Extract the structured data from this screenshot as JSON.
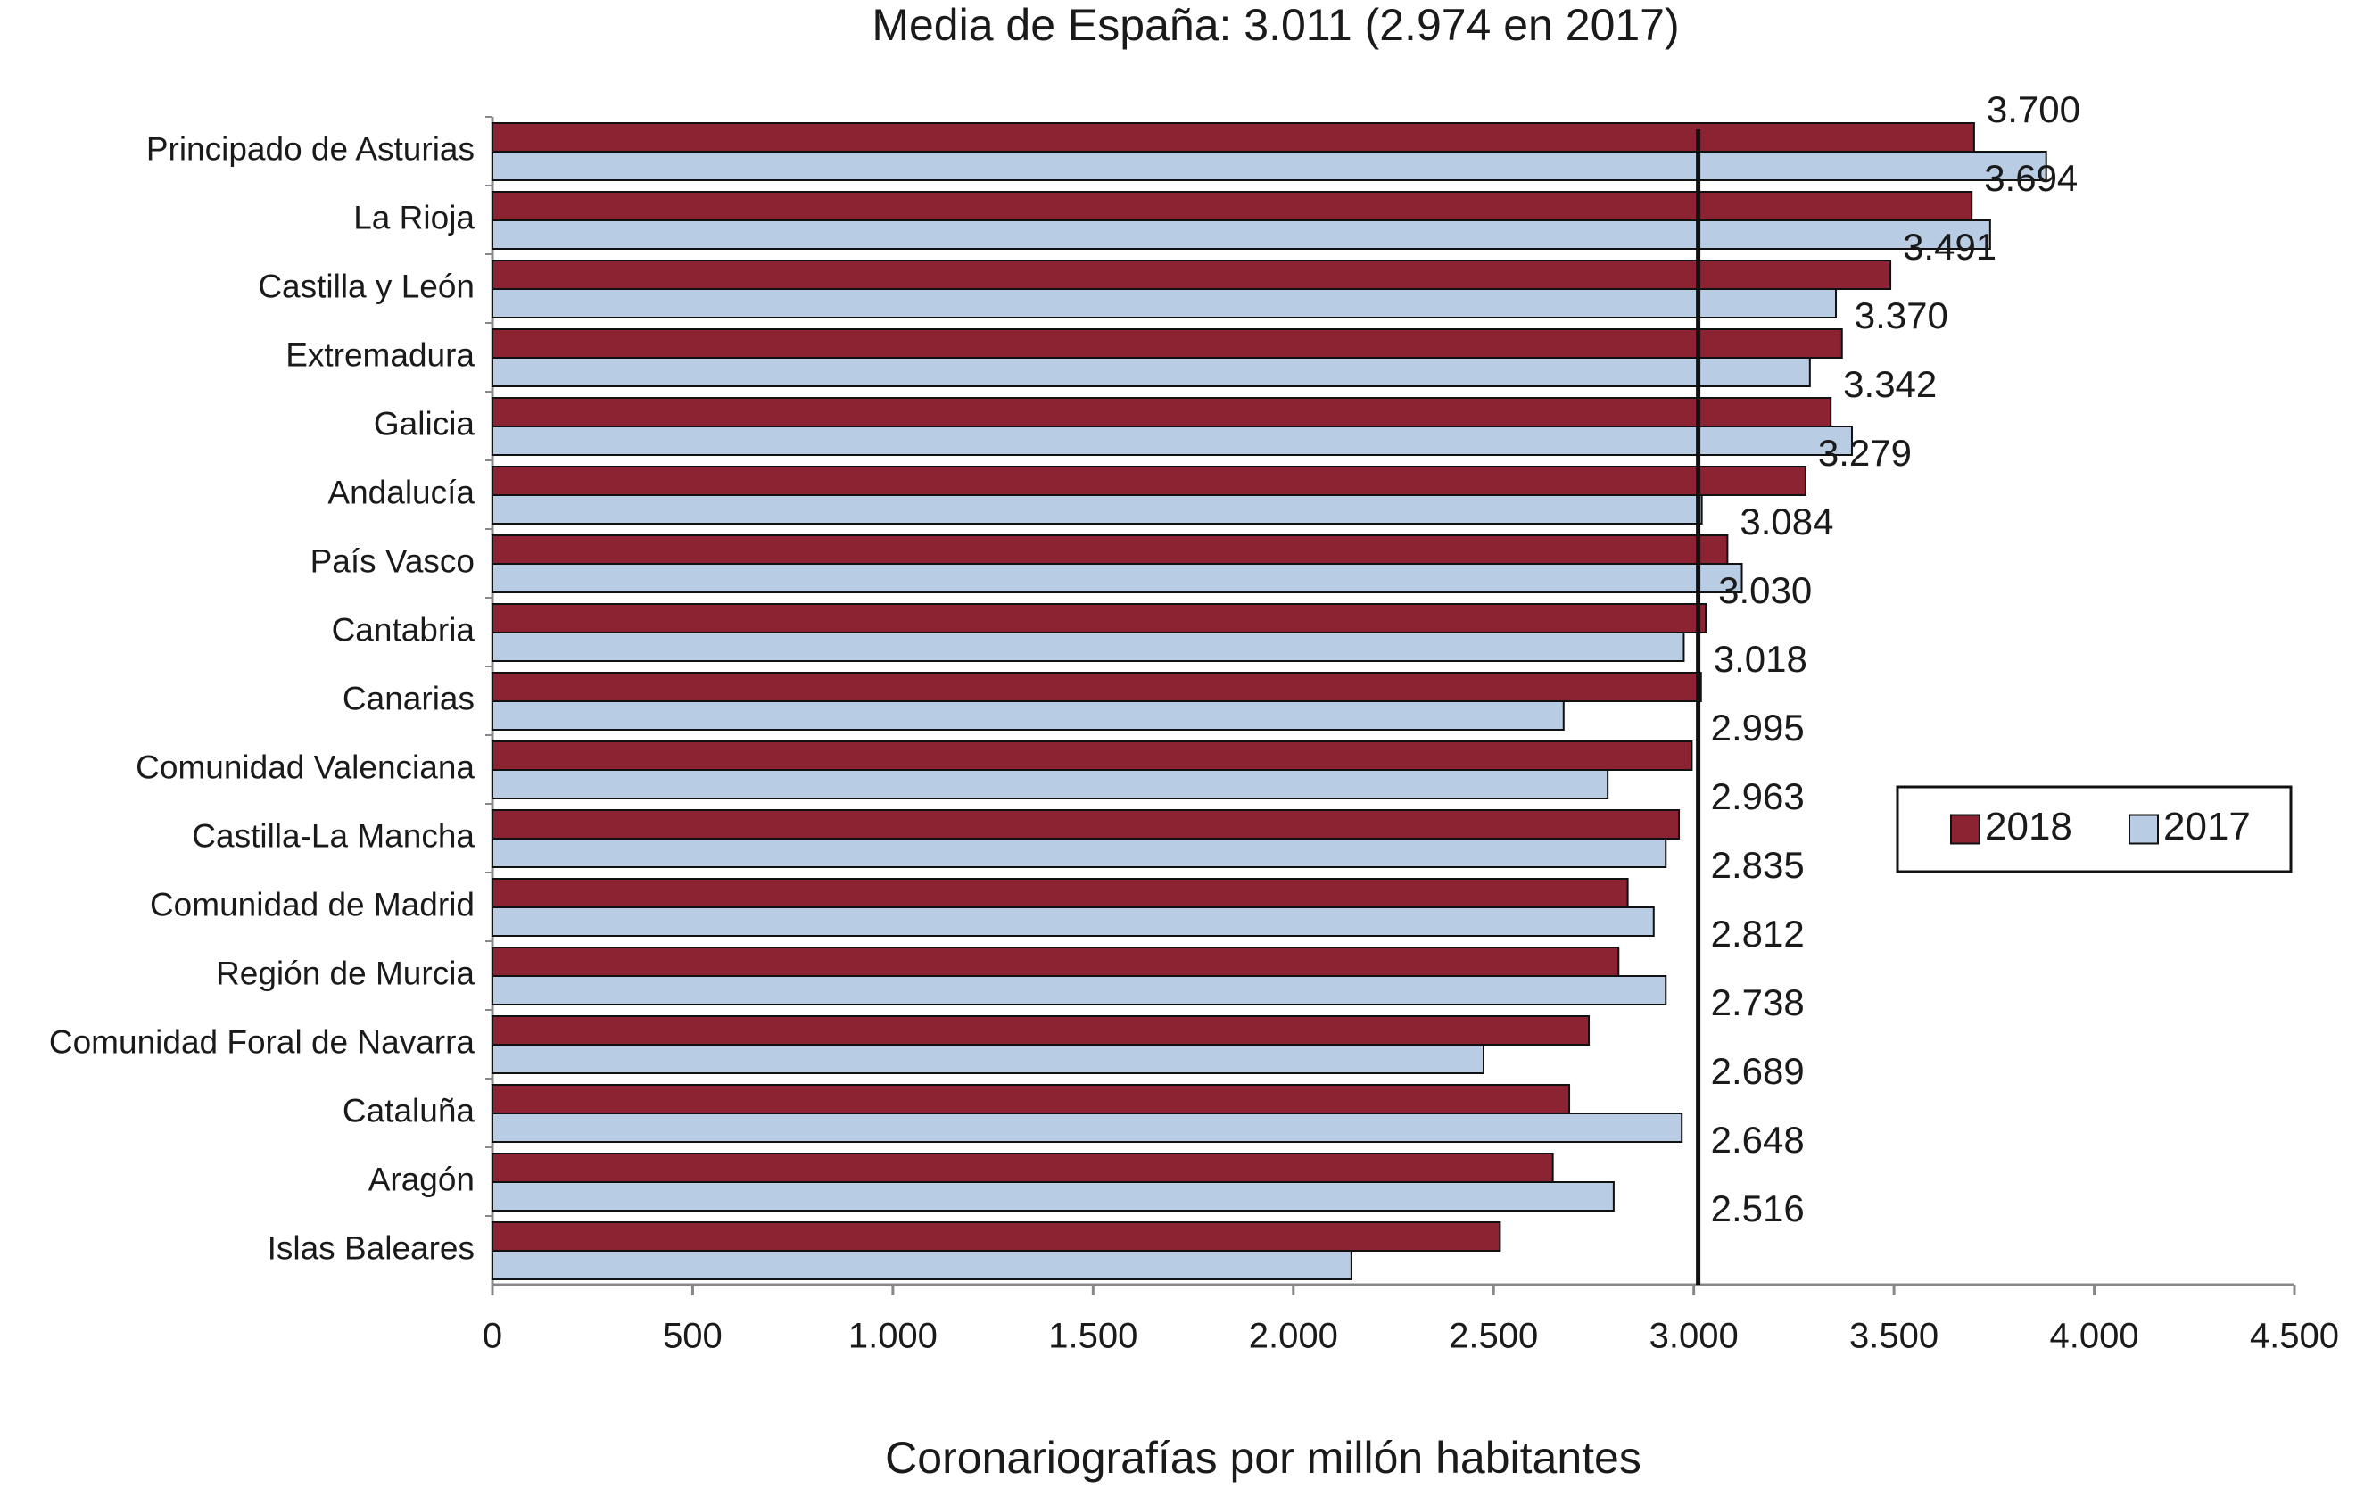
{
  "chart_data": {
    "type": "bar",
    "orientation": "horizontal",
    "title": "Media de España: 3.011 (2.974 en 2017)",
    "x_label": "Coronariografías por millón habitantes",
    "categories": [
      "Principado de Asturias",
      "La Rioja",
      "Castilla y León",
      "Extremadura",
      "Galicia",
      "Andalucía",
      "País Vasco",
      "Cantabria",
      "Canarias",
      "Comunidad Valenciana",
      "Castilla-La Mancha",
      "Comunidad de Madrid",
      "Región de Murcia",
      "Comunidad Foral de Navarra",
      "Cataluña",
      "Aragón",
      "Islas Baleares"
    ],
    "series": [
      {
        "name": "2018",
        "color": "#8b2332",
        "values": [
          3700,
          3694,
          3491,
          3370,
          3342,
          3279,
          3084,
          3030,
          3018,
          2995,
          2963,
          2835,
          2812,
          2738,
          2689,
          2648,
          2516
        ],
        "value_labels": [
          "3.700",
          "3.694",
          "3.491",
          "3.370",
          "3.342",
          "3.279",
          "3.084",
          "3.030",
          "3.018",
          "2.995",
          "2.963",
          "2.835",
          "2.812",
          "2.738",
          "2.689",
          "2.648",
          "2.516"
        ]
      },
      {
        "name": "2017",
        "color": "#b8cce4",
        "values": [
          3880,
          3740,
          3355,
          3290,
          3395,
          3020,
          3120,
          2975,
          2675,
          2785,
          2930,
          2900,
          2930,
          2475,
          2970,
          2800,
          2145
        ]
      }
    ],
    "mean_line": 3011,
    "xlim": [
      0,
      4500
    ],
    "xticks": [
      0,
      500,
      {
        "value": 1000,
        "label": "1.000"
      },
      {
        "value": 1500,
        "label": "1.500"
      },
      {
        "value": 2000,
        "label": "2.000"
      },
      {
        "value": 2500,
        "label": "2.500"
      },
      {
        "value": 3000,
        "label": "3.000"
      },
      {
        "value": 3500,
        "label": "3.500"
      },
      {
        "value": 4000,
        "label": "4.000"
      },
      {
        "value": 4500,
        "label": "4.500"
      }
    ],
    "grid": false,
    "legend_position": "right"
  }
}
